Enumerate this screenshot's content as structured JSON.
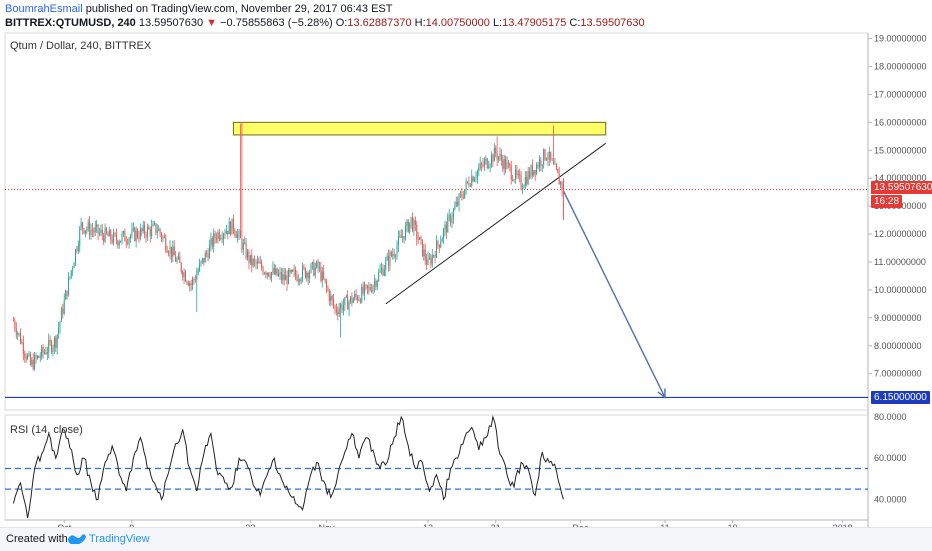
{
  "header": {
    "author": "BoumrahEsmail",
    "published_text": "published on TradingView.com, November 29, 2017 06:43 EST",
    "symbol": "BITTREX:QTUMUSD, 240",
    "last": "13.59507630",
    "change_arrow": "▼",
    "change": "−0.75855863 (−5.28%)",
    "o_label": "O:",
    "o_value": "13.62887370",
    "h_label": "H:",
    "h_value": "14.00750000",
    "l_label": "L:",
    "l_value": "13.47905175",
    "c_label": "C:",
    "c_value": "13.59507630"
  },
  "chart_title": "Qtum / Dollar, 240, BITTREX",
  "rsi_title": "RSI (14, close)",
  "current_price_tag": "13.59507630",
  "countdown_tag": "16:28",
  "target_price_tag": "6.15000000",
  "footer": {
    "created_with": "Created with",
    "brand": "TradingView",
    "logo_icon": "tradingview-logo-icon"
  },
  "colors": {
    "up": "#26a69a",
    "down": "#ef5350",
    "resistance_fill": "#ffff66",
    "target_line": "#1c3bbf",
    "arrow": "#4f6fb3",
    "rsi_band": "#2f6fd8",
    "price_line": "#e53935"
  },
  "chart_data": [
    {
      "type": "candlestick",
      "title": "Qtum / Dollar, 240, BITTREX",
      "x_tick_labels": [
        "Oct",
        "9",
        "23",
        "Nov",
        "13",
        "21",
        "Dec",
        "11",
        "19",
        "2018"
      ],
      "y_ticks": [
        "19.00000000",
        "18.00000000",
        "17.00000000",
        "16.00000000",
        "15.00000000",
        "14.00000000",
        "13.00000000",
        "12.00000000",
        "11.00000000",
        "10.00000000",
        "9.00000000",
        "8.00000000",
        "7.00000000"
      ],
      "ylim": [
        5.7,
        19.2
      ],
      "last_price": 13.5950763,
      "trend_points": [
        {
          "date": "2017-09-25",
          "price": 8.9
        },
        {
          "date": "2017-09-27",
          "price": 7.3
        },
        {
          "date": "2017-09-30",
          "price": 8.2
        },
        {
          "date": "2017-10-03",
          "price": 12.3
        },
        {
          "date": "2017-10-07",
          "price": 11.8
        },
        {
          "date": "2017-10-12",
          "price": 12.2
        },
        {
          "date": "2017-10-16",
          "price": 10.2
        },
        {
          "date": "2017-10-19",
          "price": 12.0
        },
        {
          "date": "2017-10-21",
          "price": 12.3
        },
        {
          "date": "2017-10-23",
          "price": 11.0
        },
        {
          "date": "2017-10-27",
          "price": 10.4
        },
        {
          "date": "2017-10-31",
          "price": 10.8
        },
        {
          "date": "2017-11-02",
          "price": 9.3
        },
        {
          "date": "2017-11-06",
          "price": 10.0
        },
        {
          "date": "2017-11-09",
          "price": 11.4
        },
        {
          "date": "2017-11-11",
          "price": 12.5
        },
        {
          "date": "2017-11-13",
          "price": 10.9
        },
        {
          "date": "2017-11-16",
          "price": 12.8
        },
        {
          "date": "2017-11-18",
          "price": 14.0
        },
        {
          "date": "2017-11-21",
          "price": 14.9
        },
        {
          "date": "2017-11-24",
          "price": 13.8
        },
        {
          "date": "2017-11-27",
          "price": 14.9
        },
        {
          "date": "2017-11-29",
          "price": 13.6
        }
      ],
      "resistance_zone": {
        "from_date": "2017-10-21",
        "to_date": "2017-12-04",
        "low": 15.55,
        "high": 16.0
      },
      "support_trendline": [
        {
          "date": "2017-11-08",
          "price": 9.5
        },
        {
          "date": "2017-12-04",
          "price": 15.25
        }
      ],
      "target_line_price": 6.15,
      "projection_arrow": [
        {
          "date": "2017-11-29",
          "price": 13.55
        },
        {
          "date": "2017-12-11",
          "price": 6.15
        }
      ]
    },
    {
      "type": "line",
      "title": "RSI (14, close)",
      "y_ticks": [
        "80.0000",
        "60.0000",
        "40.0000"
      ],
      "ylim": [
        30,
        81
      ],
      "bands": [
        55,
        45
      ],
      "series": [
        {
          "values": [
            38,
            48,
            30,
            55,
            62,
            72,
            60,
            74,
            65,
            52,
            60,
            48,
            40,
            58,
            66,
            52,
            44,
            60,
            70,
            55,
            48,
            40,
            53,
            67,
            74,
            55,
            44,
            62,
            72,
            52,
            48,
            46,
            60,
            58,
            47,
            42,
            52,
            60,
            50,
            44,
            38,
            35,
            50,
            58,
            49,
            41,
            52,
            63,
            72,
            60,
            70,
            64,
            55,
            58,
            70,
            80,
            66,
            55,
            58,
            44,
            52,
            40,
            55,
            60,
            70,
            75,
            64,
            70,
            80,
            62,
            52,
            46,
            58,
            55,
            42,
            63,
            58,
            54,
            40
          ]
        }
      ]
    }
  ]
}
